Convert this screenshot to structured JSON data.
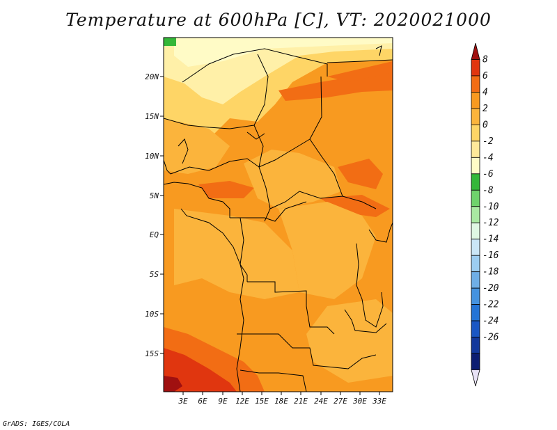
{
  "title": "Temperature at 600hPa [C], VT: 2020021000",
  "footer": "GrADS: IGES/COLA",
  "lat_labels": [
    "20N",
    "15N",
    "10N",
    "5N",
    "EQ",
    "5S",
    "10S",
    "15S"
  ],
  "lon_labels": [
    "3E",
    "6E",
    "9E",
    "12E",
    "15E",
    "18E",
    "21E",
    "24E",
    "27E",
    "30E",
    "33E"
  ],
  "colorbar": {
    "labels": [
      "8",
      "6",
      "4",
      "2",
      "0",
      "-2",
      "-4",
      "-6",
      "-8",
      "-10",
      "-12",
      "-14",
      "-16",
      "-18",
      "-20",
      "-22",
      "-24",
      "-26"
    ],
    "colors": [
      "#a01010",
      "#e0360f",
      "#f26d14",
      "#f89a20",
      "#fbb43c",
      "#fed566",
      "#fee99a",
      "#fffbc6",
      "#34b739",
      "#6fd26c",
      "#a9e9a2",
      "#dff7e3",
      "#cae6f7",
      "#9ccdf1",
      "#6faee6",
      "#4492df",
      "#2374d6",
      "#1a57c4",
      "#13399c",
      "#0c1e72",
      "#e8e2f6"
    ]
  },
  "map": {
    "region": "Central Africa",
    "lon_range": [
      0,
      35
    ],
    "lat_range": [
      -20,
      24
    ],
    "field_colors": {
      "cold": "#fff0a8",
      "cool": "#fed566",
      "mild": "#fbb43c",
      "warm": "#f89a20",
      "hot": "#f26d14",
      "very_hot": "#e0360f",
      "extreme": "#a01010",
      "green_patch": "#34b739"
    }
  }
}
